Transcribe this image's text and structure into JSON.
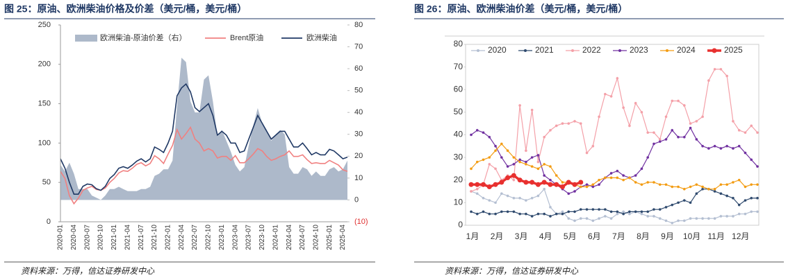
{
  "chart_data": [
    {
      "type": "combo",
      "title": "图 25：原油、欧洲柴油价格及价差（美元/桶，美元/桶）",
      "source": "资料来源：万得，信达证券研发中心",
      "categories": [
        "2020-01",
        null,
        null,
        "2020-04",
        null,
        null,
        "2020-07",
        null,
        null,
        "2020-10",
        null,
        null,
        "2021-01",
        null,
        null,
        "2021-04",
        null,
        null,
        "2021-07",
        null,
        null,
        "2021-10",
        null,
        null,
        "2022-01",
        null,
        null,
        "2022-04",
        null,
        null,
        "2022-07",
        null,
        null,
        "2022-10",
        null,
        null,
        "2023-01",
        null,
        null,
        "2023-04",
        null,
        null,
        "2023-07",
        null,
        null,
        "2023-10",
        null,
        null,
        "2024-01",
        null,
        null,
        "2024-04",
        null,
        null,
        "2024-07",
        null,
        null,
        "2024-10",
        null,
        null,
        "2025-01",
        null,
        null,
        "2025-04",
        null
      ],
      "ylim": [
        0,
        250
      ],
      "yticks": [
        0,
        50,
        100,
        150,
        200,
        250
      ],
      "y2lim": [
        -10,
        80
      ],
      "y2ticks": [
        {
          "value": -10,
          "label": "(10)"
        },
        0,
        10,
        20,
        30,
        40,
        50,
        60,
        70,
        80
      ],
      "series": [
        {
          "name": "欧洲柴油-原油价差（右）",
          "style": "area",
          "axis": "y2",
          "color": "#adb9ca",
          "values": [
            16,
            13,
            17,
            12,
            5,
            5,
            5,
            2,
            1,
            0,
            2,
            5,
            5,
            6,
            5,
            4,
            4,
            4,
            5,
            5,
            6,
            11,
            12,
            14,
            14,
            18,
            43,
            65,
            63,
            45,
            40,
            40,
            55,
            57,
            45,
            29,
            32,
            27,
            22,
            16,
            13,
            15,
            25,
            34,
            42,
            35,
            32,
            27,
            30,
            32,
            30,
            15,
            12,
            12,
            15,
            14,
            11,
            13,
            11,
            11,
            14,
            15,
            13,
            14,
            18
          ]
        },
        {
          "name": "Brent原油",
          "style": "line",
          "color": "#f08080",
          "values": [
            64,
            55,
            33,
            23,
            30,
            40,
            43,
            45,
            41,
            40,
            43,
            50,
            55,
            62,
            65,
            64,
            68,
            73,
            75,
            71,
            74,
            84,
            80,
            74,
            86,
            97,
            117,
            105,
            112,
            120,
            105,
            100,
            90,
            93,
            90,
            81,
            83,
            83,
            78,
            84,
            75,
            75,
            80,
            86,
            93,
            90,
            83,
            78,
            80,
            83,
            85,
            90,
            83,
            83,
            85,
            79,
            74,
            75,
            74,
            74,
            78,
            75,
            72,
            66,
            64
          ]
        },
        {
          "name": "欧洲柴油",
          "style": "line",
          "color": "#1f3864",
          "values": [
            80,
            68,
            50,
            35,
            35,
            45,
            48,
            47,
            42,
            40,
            45,
            55,
            60,
            68,
            70,
            68,
            72,
            77,
            80,
            76,
            80,
            95,
            92,
            88,
            100,
            115,
            160,
            170,
            175,
            165,
            145,
            140,
            145,
            150,
            135,
            110,
            115,
            110,
            100,
            100,
            88,
            90,
            105,
            120,
            135,
            125,
            115,
            105,
            110,
            115,
            115,
            105,
            95,
            95,
            100,
            93,
            85,
            88,
            85,
            85,
            92,
            90,
            85,
            80,
            82
          ]
        }
      ]
    },
    {
      "type": "line",
      "title": "图 26：原油、欧洲柴油价差（美元/桶，美元/桶）",
      "source": "资料来源：万得，信达证券研发中心",
      "categories": [
        "1月",
        null,
        null,
        null,
        "2月",
        null,
        null,
        null,
        "3月",
        null,
        null,
        null,
        "4月",
        null,
        null,
        null,
        "5月",
        null,
        null,
        null,
        "6月",
        null,
        null,
        null,
        "7月",
        null,
        null,
        null,
        "8月",
        null,
        null,
        null,
        "9月",
        null,
        null,
        null,
        "10月",
        null,
        null,
        null,
        "11月",
        null,
        null,
        null,
        "12月",
        null,
        null,
        null
      ],
      "ylim": [
        0,
        80
      ],
      "yticks": [
        0,
        10,
        20,
        30,
        40,
        50,
        60,
        70,
        80
      ],
      "series": [
        {
          "name": "2020",
          "color": "#b4bfd2",
          "values": [
            15,
            14,
            12,
            11,
            10,
            14,
            13,
            12,
            12,
            11,
            12,
            13,
            16,
            8,
            5,
            6,
            3,
            2,
            3,
            3,
            2,
            3,
            4,
            3,
            5,
            6,
            5,
            6,
            5,
            4,
            4,
            3,
            2,
            1,
            2,
            2,
            3,
            3,
            3,
            3,
            3,
            4,
            4,
            4,
            5,
            5,
            6,
            6
          ]
        },
        {
          "name": "2021",
          "color": "#2f4a6e",
          "values": [
            6,
            5,
            6,
            5,
            5,
            6,
            6,
            6,
            5,
            5,
            4,
            5,
            5,
            4,
            5,
            5,
            6,
            6,
            7,
            7,
            7,
            7,
            7,
            6,
            6,
            5,
            6,
            6,
            6,
            6,
            7,
            7,
            8,
            9,
            10,
            11,
            10,
            14,
            16,
            16,
            15,
            14,
            13,
            12,
            9,
            11,
            12,
            12
          ]
        },
        {
          "name": "2022",
          "color": "#f4a0a8",
          "values": [
            15,
            16,
            18,
            27,
            25,
            20,
            22,
            20,
            53,
            33,
            51,
            28,
            39,
            42,
            44,
            45,
            45,
            46,
            45,
            32,
            35,
            48,
            58,
            57,
            65,
            52,
            44,
            54,
            50,
            41,
            41,
            38,
            48,
            55,
            55,
            53,
            45,
            46,
            48,
            64,
            69,
            69,
            66,
            46,
            42,
            41,
            44,
            41
          ]
        },
        {
          "name": "2023",
          "color": "#7030a0",
          "values": [
            40,
            42,
            41,
            39,
            35,
            30,
            26,
            27,
            29,
            28,
            30,
            31,
            22,
            20,
            18,
            16,
            14,
            15,
            17,
            18,
            17,
            18,
            21,
            23,
            24,
            22,
            21,
            22,
            25,
            30,
            36,
            37,
            38,
            42,
            39,
            39,
            43,
            38,
            35,
            34,
            35,
            34,
            35,
            34,
            35,
            32,
            29,
            26
          ]
        },
        {
          "name": "2024",
          "color": "#f39c12",
          "values": [
            25,
            28,
            29,
            30,
            33,
            36,
            33,
            30,
            28,
            27,
            26,
            25,
            27,
            26,
            22,
            19,
            19,
            18,
            17,
            17,
            18,
            20,
            21,
            21,
            21,
            20,
            21,
            19,
            18,
            19,
            19,
            18,
            18,
            17,
            17,
            16,
            17,
            18,
            17,
            16,
            16,
            18,
            18,
            19,
            20,
            17,
            18,
            18
          ]
        },
        {
          "name": "2025",
          "color": "#e8302f",
          "values": [
            18,
            18,
            18,
            17,
            18,
            19,
            21,
            22,
            20,
            19,
            19,
            18,
            19,
            18,
            18,
            17,
            19,
            18,
            19,
            null,
            null,
            null,
            null,
            null,
            null,
            null,
            null,
            null,
            null,
            null,
            null,
            null,
            null,
            null,
            null,
            null,
            null,
            null,
            null,
            null,
            null,
            null,
            null,
            null,
            null,
            null,
            null,
            null
          ]
        }
      ]
    }
  ]
}
